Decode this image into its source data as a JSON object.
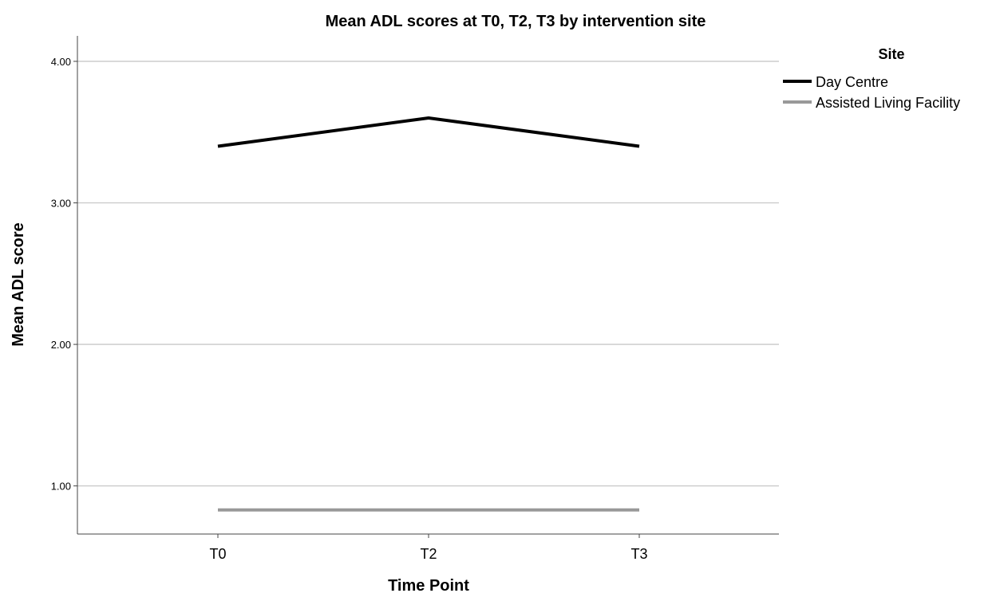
{
  "chart_data": {
    "type": "line",
    "title": "Mean ADL scores at T0, T2, T3 by intervention site",
    "xlabel": "Time Point",
    "ylabel": "Mean ADL score",
    "categories": [
      "T0",
      "T2",
      "T3"
    ],
    "yticks": [
      "1.00",
      "2.00",
      "3.00",
      "4.00"
    ],
    "ylim": [
      0.66,
      4.18
    ],
    "grid": "horizontal",
    "legend": {
      "title": "Site",
      "placement": "right"
    },
    "series": [
      {
        "name": "Day Centre",
        "values": [
          3.4,
          3.6,
          3.4
        ],
        "color": "#000000"
      },
      {
        "name": "Assisted Living Facility",
        "values": [
          0.83,
          0.83,
          0.83
        ],
        "color": "#999999"
      }
    ]
  }
}
